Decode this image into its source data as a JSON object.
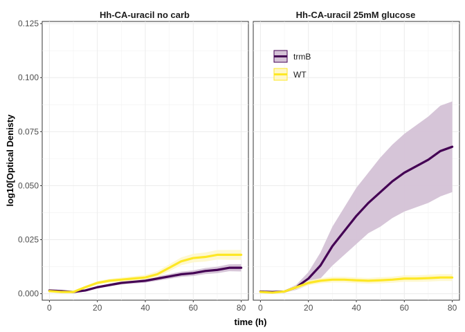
{
  "chart_data": {
    "type": "line",
    "xlabel": "time (h)",
    "ylabel": "log10[Optical Denisty",
    "xlim": [
      -3,
      83
    ],
    "ylim": [
      -0.003,
      0.126
    ],
    "x_ticks": [
      0,
      20,
      40,
      60,
      80
    ],
    "y_ticks": [
      0.0,
      0.025,
      0.05,
      0.075,
      0.1,
      0.125
    ],
    "y_tick_labels": [
      "0.000",
      "0.025",
      "0.050",
      "0.075",
      "0.100",
      "0.125"
    ],
    "x_tick_labels": [
      "0",
      "20",
      "40",
      "60",
      "80"
    ],
    "grid": true,
    "ribbon": "mean ± sd",
    "legend": {
      "placement": "inside-top-left of right panel",
      "entries": [
        "trmB",
        "WT"
      ]
    },
    "colors": {
      "trmB": "#440154",
      "trmB_ribbon": "#d4c2d6",
      "WT": "#fde725",
      "WT_ribbon": "#fef7c8"
    },
    "panels": [
      {
        "title": "Hh-CA-uracil no carb",
        "series": [
          {
            "name": "trmB",
            "x": [
              0,
              5,
              10,
              15,
              20,
              25,
              30,
              35,
              40,
              45,
              50,
              55,
              60,
              65,
              70,
              75,
              80
            ],
            "y": [
              0.0015,
              0.0012,
              0.0008,
              0.0015,
              0.003,
              0.004,
              0.005,
              0.0055,
              0.006,
              0.007,
              0.008,
              0.009,
              0.0095,
              0.0105,
              0.011,
              0.012,
              0.012
            ],
            "sd": [
              0.0004,
              0.0004,
              0.0004,
              0.0005,
              0.0005,
              0.0006,
              0.0007,
              0.0008,
              0.0009,
              0.001,
              0.0011,
              0.0012,
              0.0013,
              0.0014,
              0.0015,
              0.0016,
              0.0017
            ]
          },
          {
            "name": "WT",
            "x": [
              0,
              5,
              10,
              15,
              20,
              25,
              30,
              35,
              40,
              45,
              50,
              55,
              60,
              65,
              70,
              75,
              80
            ],
            "y": [
              0.0012,
              0.0008,
              0.0008,
              0.003,
              0.005,
              0.006,
              0.0065,
              0.007,
              0.0075,
              0.009,
              0.012,
              0.015,
              0.0165,
              0.017,
              0.018,
              0.018,
              0.018
            ],
            "sd": [
              0.0005,
              0.0005,
              0.0006,
              0.0007,
              0.0008,
              0.0009,
              0.001,
              0.0011,
              0.0012,
              0.0014,
              0.0016,
              0.0018,
              0.002,
              0.0021,
              0.0022,
              0.0023,
              0.0023
            ]
          }
        ]
      },
      {
        "title": "Hh-CA-uracil 25mM glucose",
        "series": [
          {
            "name": "trmB",
            "x": [
              0,
              5,
              10,
              15,
              20,
              25,
              30,
              35,
              40,
              45,
              50,
              55,
              60,
              65,
              70,
              75,
              80
            ],
            "y": [
              0.001,
              0.0008,
              0.001,
              0.003,
              0.007,
              0.013,
              0.022,
              0.029,
              0.036,
              0.042,
              0.047,
              0.052,
              0.056,
              0.059,
              0.062,
              0.066,
              0.068
            ],
            "sd": [
              0.0003,
              0.0003,
              0.0005,
              0.0012,
              0.003,
              0.006,
              0.009,
              0.011,
              0.013,
              0.014,
              0.016,
              0.017,
              0.018,
              0.019,
              0.02,
              0.021,
              0.021
            ]
          },
          {
            "name": "WT",
            "x": [
              0,
              5,
              10,
              15,
              20,
              25,
              30,
              35,
              40,
              45,
              50,
              55,
              60,
              65,
              70,
              75,
              80
            ],
            "y": [
              0.0008,
              0.0005,
              0.001,
              0.003,
              0.005,
              0.006,
              0.0065,
              0.0065,
              0.0062,
              0.006,
              0.0062,
              0.0065,
              0.007,
              0.007,
              0.0072,
              0.0075,
              0.0075
            ],
            "sd": [
              0.0004,
              0.0004,
              0.0006,
              0.0009,
              0.0011,
              0.0012,
              0.0013,
              0.0013,
              0.0013,
              0.0013,
              0.0014,
              0.0014,
              0.0015,
              0.0015,
              0.0016,
              0.0016,
              0.0016
            ]
          }
        ]
      }
    ]
  }
}
